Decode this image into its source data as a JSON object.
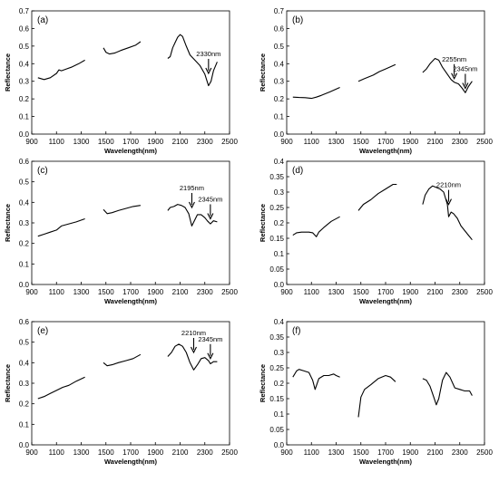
{
  "chart_data": [
    {
      "type": "line",
      "panel_label": "(a)",
      "xlabel": "Wavelength(nm)",
      "ylabel": "Reflectance",
      "xlim": [
        900,
        2500
      ],
      "ylim": [
        0,
        0.7
      ],
      "xticks": [
        "900",
        "1100",
        "1300",
        "1500",
        "1700",
        "1900",
        "2100",
        "2300",
        "2500"
      ],
      "yticks": [
        "0.0",
        "0.1",
        "0.2",
        "0.3",
        "0.4",
        "0.5",
        "0.6",
        "0.7"
      ],
      "segments": [
        [
          [
            950,
            0.32
          ],
          [
            1000,
            0.31
          ],
          [
            1050,
            0.32
          ],
          [
            1100,
            0.345
          ],
          [
            1120,
            0.365
          ],
          [
            1140,
            0.36
          ],
          [
            1180,
            0.37
          ],
          [
            1220,
            0.38
          ],
          [
            1280,
            0.4
          ],
          [
            1330,
            0.42
          ]
        ],
        [
          [
            1480,
            0.49
          ],
          [
            1500,
            0.465
          ],
          [
            1530,
            0.455
          ],
          [
            1570,
            0.46
          ],
          [
            1620,
            0.475
          ],
          [
            1680,
            0.49
          ],
          [
            1740,
            0.505
          ],
          [
            1780,
            0.525
          ]
        ],
        [
          [
            2000,
            0.43
          ],
          [
            2020,
            0.44
          ],
          [
            2040,
            0.49
          ],
          [
            2060,
            0.52
          ],
          [
            2080,
            0.55
          ],
          [
            2100,
            0.565
          ],
          [
            2120,
            0.555
          ],
          [
            2150,
            0.5
          ],
          [
            2180,
            0.45
          ],
          [
            2220,
            0.42
          ],
          [
            2260,
            0.39
          ],
          [
            2300,
            0.34
          ],
          [
            2330,
            0.275
          ],
          [
            2350,
            0.3
          ],
          [
            2370,
            0.36
          ],
          [
            2400,
            0.41
          ]
        ]
      ],
      "annotations": [
        {
          "text": "2330nm",
          "x": 2330,
          "y": 0.345
        }
      ]
    },
    {
      "type": "line",
      "panel_label": "(b)",
      "xlabel": "Wavelength(nm)",
      "ylabel": "Reflectance",
      "xlim": [
        900,
        2500
      ],
      "ylim": [
        0,
        0.7
      ],
      "xticks": [
        "900",
        "1100",
        "1300",
        "1500",
        "1700",
        "1900",
        "2100",
        "2300",
        "2500"
      ],
      "yticks": [
        "0.0",
        "0.1",
        "0.2",
        "0.3",
        "0.4",
        "0.5",
        "0.6",
        "0.7"
      ],
      "segments": [
        [
          [
            950,
            0.21
          ],
          [
            1000,
            0.208
          ],
          [
            1050,
            0.207
          ],
          [
            1100,
            0.203
          ],
          [
            1140,
            0.21
          ],
          [
            1180,
            0.22
          ],
          [
            1250,
            0.24
          ],
          [
            1330,
            0.265
          ]
        ],
        [
          [
            1480,
            0.3
          ],
          [
            1530,
            0.315
          ],
          [
            1600,
            0.335
          ],
          [
            1650,
            0.355
          ],
          [
            1700,
            0.37
          ],
          [
            1780,
            0.395
          ]
        ],
        [
          [
            2000,
            0.35
          ],
          [
            2030,
            0.37
          ],
          [
            2060,
            0.4
          ],
          [
            2100,
            0.43
          ],
          [
            2130,
            0.42
          ],
          [
            2160,
            0.38
          ],
          [
            2200,
            0.34
          ],
          [
            2230,
            0.31
          ],
          [
            2255,
            0.295
          ],
          [
            2290,
            0.285
          ],
          [
            2320,
            0.26
          ],
          [
            2345,
            0.235
          ],
          [
            2370,
            0.27
          ],
          [
            2400,
            0.3
          ]
        ]
      ],
      "annotations": [
        {
          "text": "2255nm",
          "x": 2255,
          "y": 0.315
        },
        {
          "text": "2345nm",
          "x": 2345,
          "y": 0.26
        }
      ]
    },
    {
      "type": "line",
      "panel_label": "(c)",
      "xlabel": "Wavelength(nm)",
      "ylabel": "Reflectance",
      "xlim": [
        900,
        2500
      ],
      "ylim": [
        0,
        0.6
      ],
      "xticks": [
        "900",
        "1100",
        "1300",
        "1500",
        "1700",
        "1900",
        "2100",
        "2300",
        "2500"
      ],
      "yticks": [
        "0.0",
        "0.1",
        "0.2",
        "0.3",
        "0.4",
        "0.5",
        "0.6"
      ],
      "segments": [
        [
          [
            950,
            0.235
          ],
          [
            1000,
            0.245
          ],
          [
            1050,
            0.255
          ],
          [
            1100,
            0.265
          ],
          [
            1140,
            0.285
          ],
          [
            1200,
            0.295
          ],
          [
            1260,
            0.305
          ],
          [
            1330,
            0.32
          ]
        ],
        [
          [
            1480,
            0.365
          ],
          [
            1510,
            0.345
          ],
          [
            1550,
            0.35
          ],
          [
            1600,
            0.36
          ],
          [
            1660,
            0.37
          ],
          [
            1720,
            0.38
          ],
          [
            1780,
            0.385
          ]
        ],
        [
          [
            2000,
            0.36
          ],
          [
            2020,
            0.375
          ],
          [
            2050,
            0.38
          ],
          [
            2080,
            0.39
          ],
          [
            2110,
            0.385
          ],
          [
            2140,
            0.375
          ],
          [
            2170,
            0.345
          ],
          [
            2195,
            0.285
          ],
          [
            2215,
            0.31
          ],
          [
            2240,
            0.34
          ],
          [
            2270,
            0.34
          ],
          [
            2300,
            0.325
          ],
          [
            2320,
            0.31
          ],
          [
            2345,
            0.295
          ],
          [
            2370,
            0.31
          ],
          [
            2400,
            0.305
          ]
        ]
      ],
      "annotations": [
        {
          "text": "2195nm",
          "x": 2195,
          "y": 0.375
        },
        {
          "text": "2345nm",
          "x": 2345,
          "y": 0.32
        }
      ]
    },
    {
      "type": "line",
      "panel_label": "(d)",
      "xlabel": "Wavelength(nm)",
      "ylabel": "Reflectance",
      "xlim": [
        900,
        2500
      ],
      "ylim": [
        0,
        0.4
      ],
      "xticks": [
        "900",
        "1100",
        "1300",
        "1500",
        "1700",
        "1900",
        "2100",
        "2300",
        "2500"
      ],
      "yticks": [
        "0.0",
        "0.05",
        "0.1",
        "0.15",
        "0.2",
        "0.25",
        "0.3",
        "0.35",
        "0.4"
      ],
      "segments": [
        [
          [
            950,
            0.16
          ],
          [
            980,
            0.168
          ],
          [
            1020,
            0.17
          ],
          [
            1080,
            0.17
          ],
          [
            1110,
            0.168
          ],
          [
            1140,
            0.155
          ],
          [
            1160,
            0.17
          ],
          [
            1200,
            0.185
          ],
          [
            1260,
            0.205
          ],
          [
            1330,
            0.22
          ]
        ],
        [
          [
            1480,
            0.24
          ],
          [
            1520,
            0.26
          ],
          [
            1580,
            0.275
          ],
          [
            1640,
            0.295
          ],
          [
            1700,
            0.31
          ],
          [
            1760,
            0.325
          ],
          [
            1790,
            0.325
          ]
        ],
        [
          [
            2000,
            0.26
          ],
          [
            2020,
            0.29
          ],
          [
            2050,
            0.31
          ],
          [
            2080,
            0.32
          ],
          [
            2110,
            0.315
          ],
          [
            2140,
            0.31
          ],
          [
            2170,
            0.3
          ],
          [
            2200,
            0.26
          ],
          [
            2210,
            0.22
          ],
          [
            2230,
            0.235
          ],
          [
            2250,
            0.23
          ],
          [
            2280,
            0.215
          ],
          [
            2310,
            0.19
          ],
          [
            2340,
            0.175
          ],
          [
            2370,
            0.16
          ],
          [
            2400,
            0.145
          ]
        ]
      ],
      "annotations": [
        {
          "text": "2210nm",
          "x": 2210,
          "y": 0.26
        }
      ]
    },
    {
      "type": "line",
      "panel_label": "(e)",
      "xlabel": "Wavelength(nm)",
      "ylabel": "Reflectance",
      "xlim": [
        900,
        2500
      ],
      "ylim": [
        0,
        0.6
      ],
      "xticks": [
        "900",
        "1100",
        "1300",
        "1500",
        "1700",
        "1900",
        "2100",
        "2300",
        "2500"
      ],
      "yticks": [
        "0.0",
        "0.1",
        "0.2",
        "0.3",
        "0.4",
        "0.5",
        "0.6"
      ],
      "segments": [
        [
          [
            950,
            0.225
          ],
          [
            1000,
            0.235
          ],
          [
            1050,
            0.25
          ],
          [
            1100,
            0.265
          ],
          [
            1150,
            0.28
          ],
          [
            1200,
            0.29
          ],
          [
            1260,
            0.31
          ],
          [
            1330,
            0.33
          ]
        ],
        [
          [
            1480,
            0.4
          ],
          [
            1510,
            0.385
          ],
          [
            1550,
            0.39
          ],
          [
            1600,
            0.4
          ],
          [
            1660,
            0.41
          ],
          [
            1720,
            0.42
          ],
          [
            1780,
            0.44
          ]
        ],
        [
          [
            2000,
            0.43
          ],
          [
            2030,
            0.45
          ],
          [
            2060,
            0.48
          ],
          [
            2090,
            0.49
          ],
          [
            2120,
            0.48
          ],
          [
            2150,
            0.45
          ],
          [
            2180,
            0.4
          ],
          [
            2210,
            0.365
          ],
          [
            2240,
            0.39
          ],
          [
            2270,
            0.42
          ],
          [
            2300,
            0.425
          ],
          [
            2330,
            0.41
          ],
          [
            2345,
            0.395
          ],
          [
            2370,
            0.405
          ],
          [
            2400,
            0.405
          ]
        ]
      ],
      "annotations": [
        {
          "text": "2210nm",
          "x": 2210,
          "y": 0.45
        },
        {
          "text": "2345nm",
          "x": 2345,
          "y": 0.42
        }
      ]
    },
    {
      "type": "line",
      "panel_label": "(f)",
      "xlabel": "Wavelength(nm)",
      "ylabel": "Reflectance",
      "xlim": [
        900,
        2500
      ],
      "ylim": [
        0,
        0.4
      ],
      "xticks": [
        "900",
        "1100",
        "1300",
        "1500",
        "1700",
        "1900",
        "2100",
        "2300",
        "2500"
      ],
      "yticks": [
        "0.0",
        "0.05",
        "0.1",
        "0.15",
        "0.2",
        "0.25",
        "0.3",
        "0.35",
        "0.4"
      ],
      "segments": [
        [
          [
            950,
            0.22
          ],
          [
            980,
            0.24
          ],
          [
            1000,
            0.245
          ],
          [
            1040,
            0.24
          ],
          [
            1080,
            0.235
          ],
          [
            1110,
            0.21
          ],
          [
            1130,
            0.18
          ],
          [
            1160,
            0.215
          ],
          [
            1200,
            0.225
          ],
          [
            1240,
            0.225
          ],
          [
            1280,
            0.23
          ],
          [
            1300,
            0.225
          ],
          [
            1330,
            0.22
          ]
        ],
        [
          [
            1480,
            0.09
          ],
          [
            1500,
            0.155
          ],
          [
            1530,
            0.18
          ],
          [
            1580,
            0.195
          ],
          [
            1640,
            0.215
          ],
          [
            1700,
            0.225
          ],
          [
            1740,
            0.22
          ],
          [
            1780,
            0.205
          ]
        ],
        [
          [
            2000,
            0.215
          ],
          [
            2030,
            0.21
          ],
          [
            2060,
            0.19
          ],
          [
            2090,
            0.155
          ],
          [
            2110,
            0.13
          ],
          [
            2130,
            0.15
          ],
          [
            2160,
            0.21
          ],
          [
            2190,
            0.235
          ],
          [
            2220,
            0.22
          ],
          [
            2260,
            0.185
          ],
          [
            2300,
            0.18
          ],
          [
            2340,
            0.175
          ],
          [
            2380,
            0.175
          ],
          [
            2400,
            0.16
          ]
        ]
      ],
      "annotations": []
    }
  ]
}
